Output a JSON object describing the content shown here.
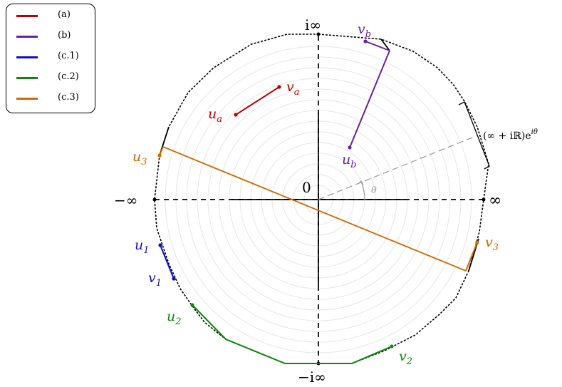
{
  "legend": {
    "items": [
      {
        "label": "(a)",
        "color": "#c00000"
      },
      {
        "label": "(b)",
        "color": "#6a1fa0"
      },
      {
        "label": "(c.1)",
        "color": "#1010c0"
      },
      {
        "label": "(c.2)",
        "color": "#0a8a0a"
      },
      {
        "label": "(c.3)",
        "color": "#d06a00"
      }
    ]
  },
  "labels": {
    "origin": "0",
    "top": "i∞",
    "bottom": "−i∞",
    "left": "−∞",
    "right": "∞",
    "theta": "θ",
    "boundary_ray": "(∞ + iℝ)e^{iθ}"
  },
  "points": {
    "u_a": "u_a",
    "v_a": "v_a",
    "u_b": "u_b",
    "v_b": "v_b",
    "u_1": "u_1",
    "v_1": "v_1",
    "u_2": "u_2",
    "v_2": "v_2",
    "u_3": "u_3",
    "v_3": "v_3"
  },
  "colors": {
    "axis": "#000000",
    "grid_circle": "#e6e6e6",
    "boundary": "#000000",
    "ray": "#a0a0a0"
  }
}
